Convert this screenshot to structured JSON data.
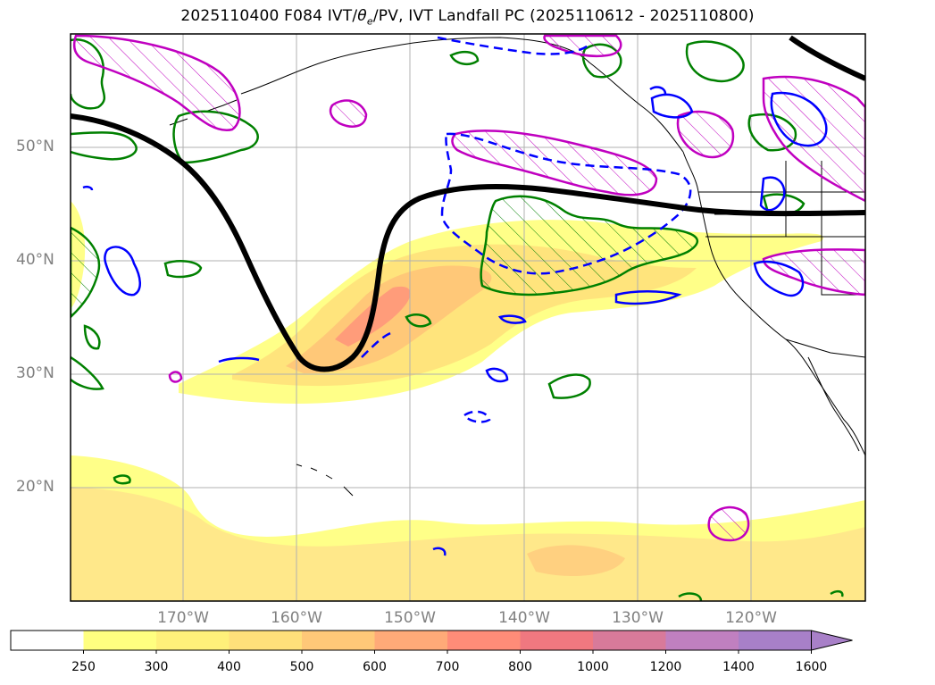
{
  "title": {
    "prefix": "2025110400 F084 IVT/",
    "theta": "θ",
    "theta_sub": "e",
    "suffix": "/PV, IVT Landfall PC (2025110612 - 2025110800)"
  },
  "lat_labels": [
    "50°N",
    "40°N",
    "30°N",
    "20°N"
  ],
  "lon_labels": [
    "170°W",
    "160°W",
    "150°W",
    "140°W",
    "130°W",
    "120°W"
  ],
  "colorbar": {
    "levels": [
      "250",
      "300",
      "400",
      "500",
      "600",
      "700",
      "800",
      "1000",
      "1200",
      "1400",
      "1600"
    ],
    "colors": [
      "#ffffff",
      "#ffff80",
      "#fff07a",
      "#ffe07a",
      "#ffc878",
      "#ffaa78",
      "#ff8c78",
      "#f07880",
      "#d87a9a",
      "#c080c0",
      "#a880c8"
    ],
    "extend": "max"
  },
  "map_extent": {
    "lon": [
      -180,
      -110
    ],
    "lat": [
      10,
      60
    ]
  },
  "gridlines": {
    "lon": [
      -170,
      -160,
      -150,
      -140,
      -130,
      -120
    ],
    "lat": [
      20,
      30,
      40,
      50
    ]
  },
  "colors": {
    "pv_line": "#000000",
    "theta_pos": "#0000ff",
    "ivt_landfall": "#008000",
    "hatch": "#c000c0",
    "grid": "#b0b0b0",
    "label": "#808080"
  }
}
